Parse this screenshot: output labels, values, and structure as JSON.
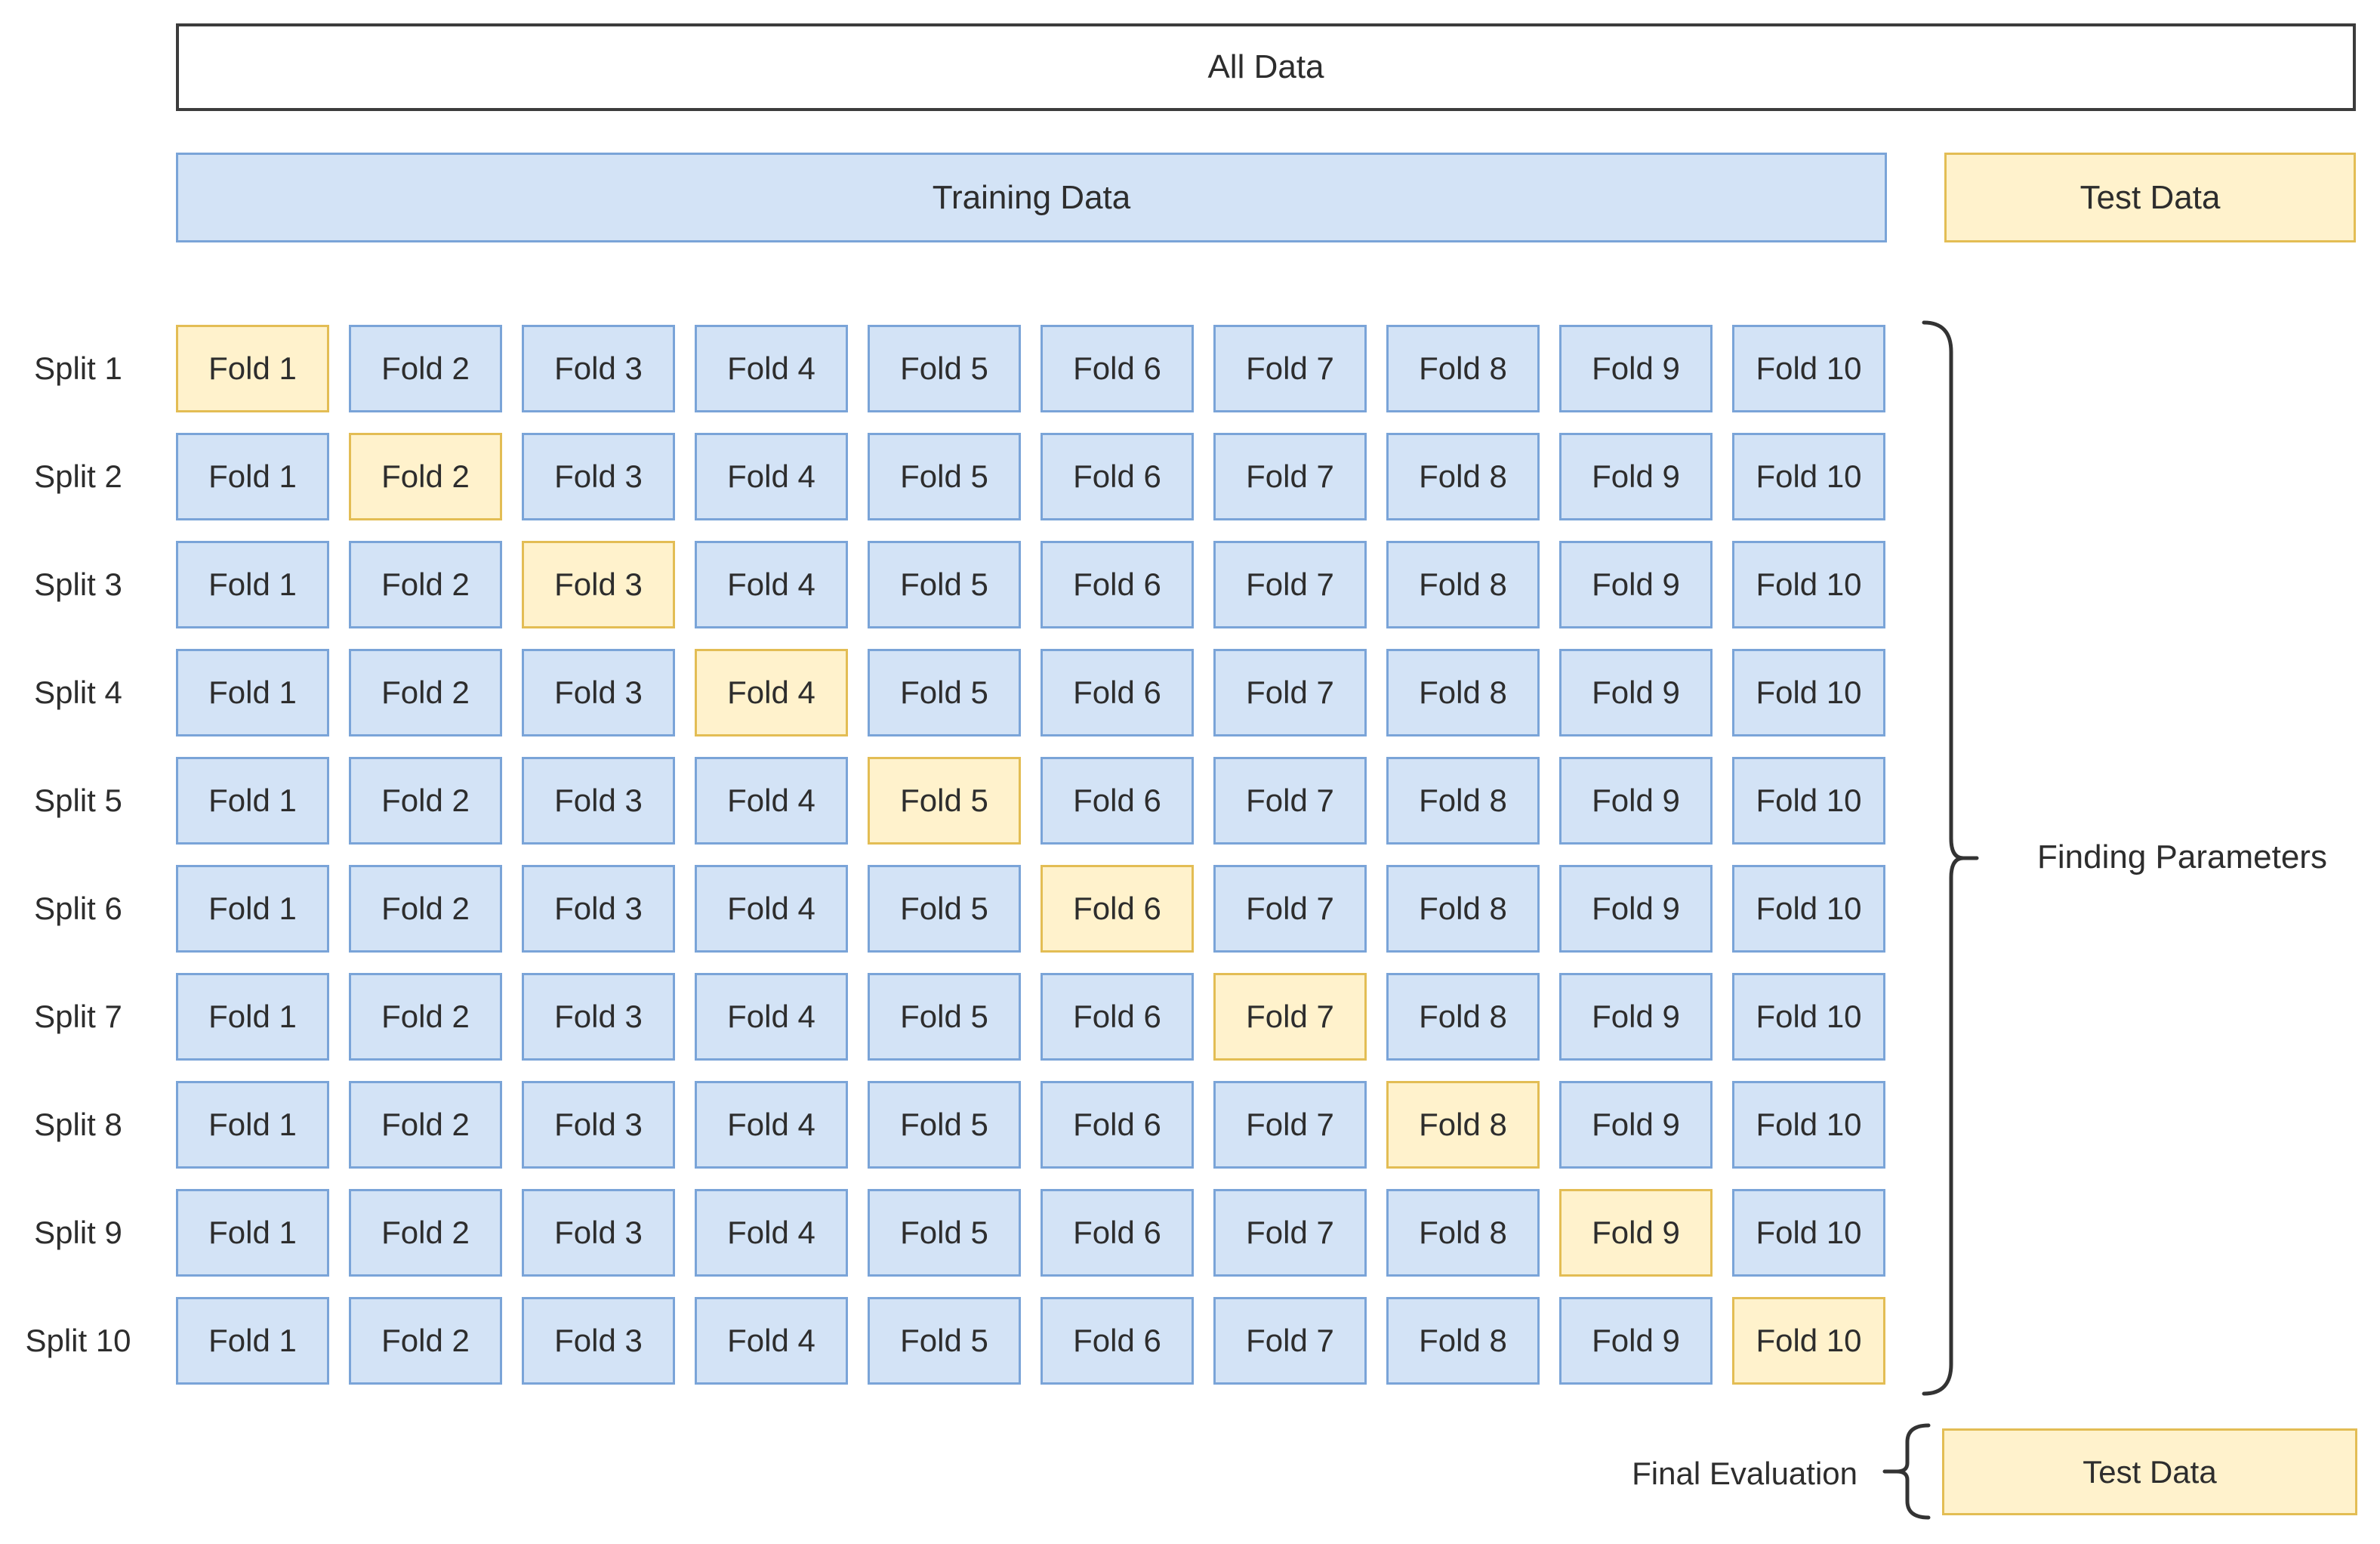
{
  "colors": {
    "background": "#ffffff",
    "text": "#2d2d2d",
    "box_border_dark": "#3c3c3c",
    "blue_fill": "#d3e3f6",
    "blue_border": "#7aa4d8",
    "yellow_fill": "#fff2cc",
    "yellow_border": "#e3bd54",
    "brace": "#333333"
  },
  "top": {
    "all_data": "All Data",
    "training_data": "Training Data",
    "test_data": "Test Data"
  },
  "grid": {
    "folds": [
      "Fold 1",
      "Fold 2",
      "Fold 3",
      "Fold 4",
      "Fold 5",
      "Fold 6",
      "Fold 7",
      "Fold 8",
      "Fold 9",
      "Fold 10"
    ],
    "splits": [
      {
        "label": "Split 1",
        "test_fold": "Fold 1"
      },
      {
        "label": "Split 2",
        "test_fold": "Fold 2"
      },
      {
        "label": "Split 3",
        "test_fold": "Fold 3"
      },
      {
        "label": "Split 4",
        "test_fold": "Fold 4"
      },
      {
        "label": "Split 5",
        "test_fold": "Fold 5"
      },
      {
        "label": "Split 6",
        "test_fold": "Fold 6"
      },
      {
        "label": "Split 7",
        "test_fold": "Fold 7"
      },
      {
        "label": "Split 8",
        "test_fold": "Fold 8"
      },
      {
        "label": "Split 9",
        "test_fold": "Fold 9"
      },
      {
        "label": "Split 10",
        "test_fold": "Fold 10"
      }
    ]
  },
  "annotations": {
    "finding_parameters": "Finding Parameters",
    "final_evaluation": "Final Evaluation",
    "test_data": "Test Data"
  }
}
